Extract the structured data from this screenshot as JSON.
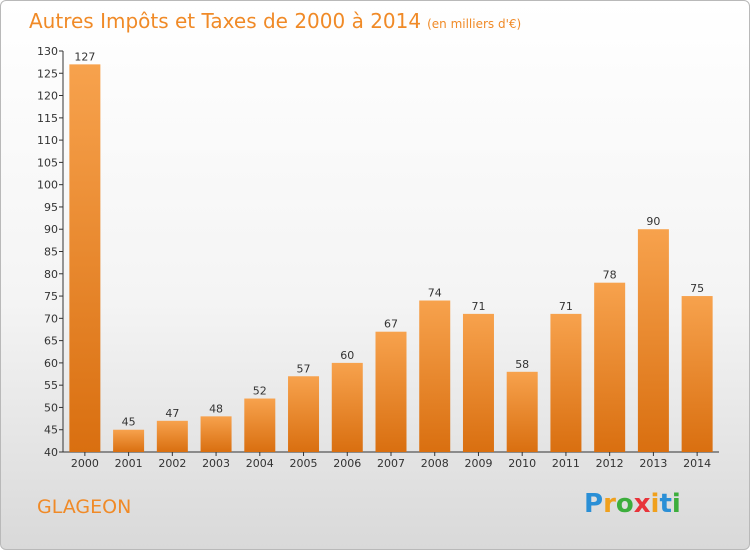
{
  "title": "Autres Impôts et Taxes de 2000 à 2014",
  "subtitle": "(en milliers d'€)",
  "commune": "GLAGEON",
  "logo": {
    "letters": [
      "P",
      "r",
      "o",
      "x",
      "i",
      "t",
      "i"
    ],
    "colors": [
      "#2a8fd6",
      "#f0a01c",
      "#3cae3c",
      "#e8333a",
      "#f0a01c",
      "#2a8fd6",
      "#3cae3c"
    ]
  },
  "colors": {
    "bar_top": "#f7a24d",
    "bar_bottom": "#d96f10",
    "title": "#f08a27"
  },
  "chart_data": {
    "type": "bar",
    "categories": [
      "2000",
      "2001",
      "2002",
      "2003",
      "2004",
      "2005",
      "2006",
      "2007",
      "2008",
      "2009",
      "2010",
      "2011",
      "2012",
      "2013",
      "2014"
    ],
    "values": [
      127,
      45,
      47,
      48,
      52,
      57,
      60,
      67,
      74,
      71,
      58,
      71,
      78,
      90,
      75
    ],
    "title": "Autres Impôts et Taxes de 2000 à 2014",
    "xlabel": "",
    "ylabel": "",
    "ylim": [
      40,
      130
    ],
    "yticks": [
      40,
      45,
      50,
      55,
      60,
      65,
      70,
      75,
      80,
      85,
      90,
      95,
      100,
      105,
      110,
      115,
      120,
      125,
      130
    ],
    "grid": false,
    "data_labels": true
  }
}
